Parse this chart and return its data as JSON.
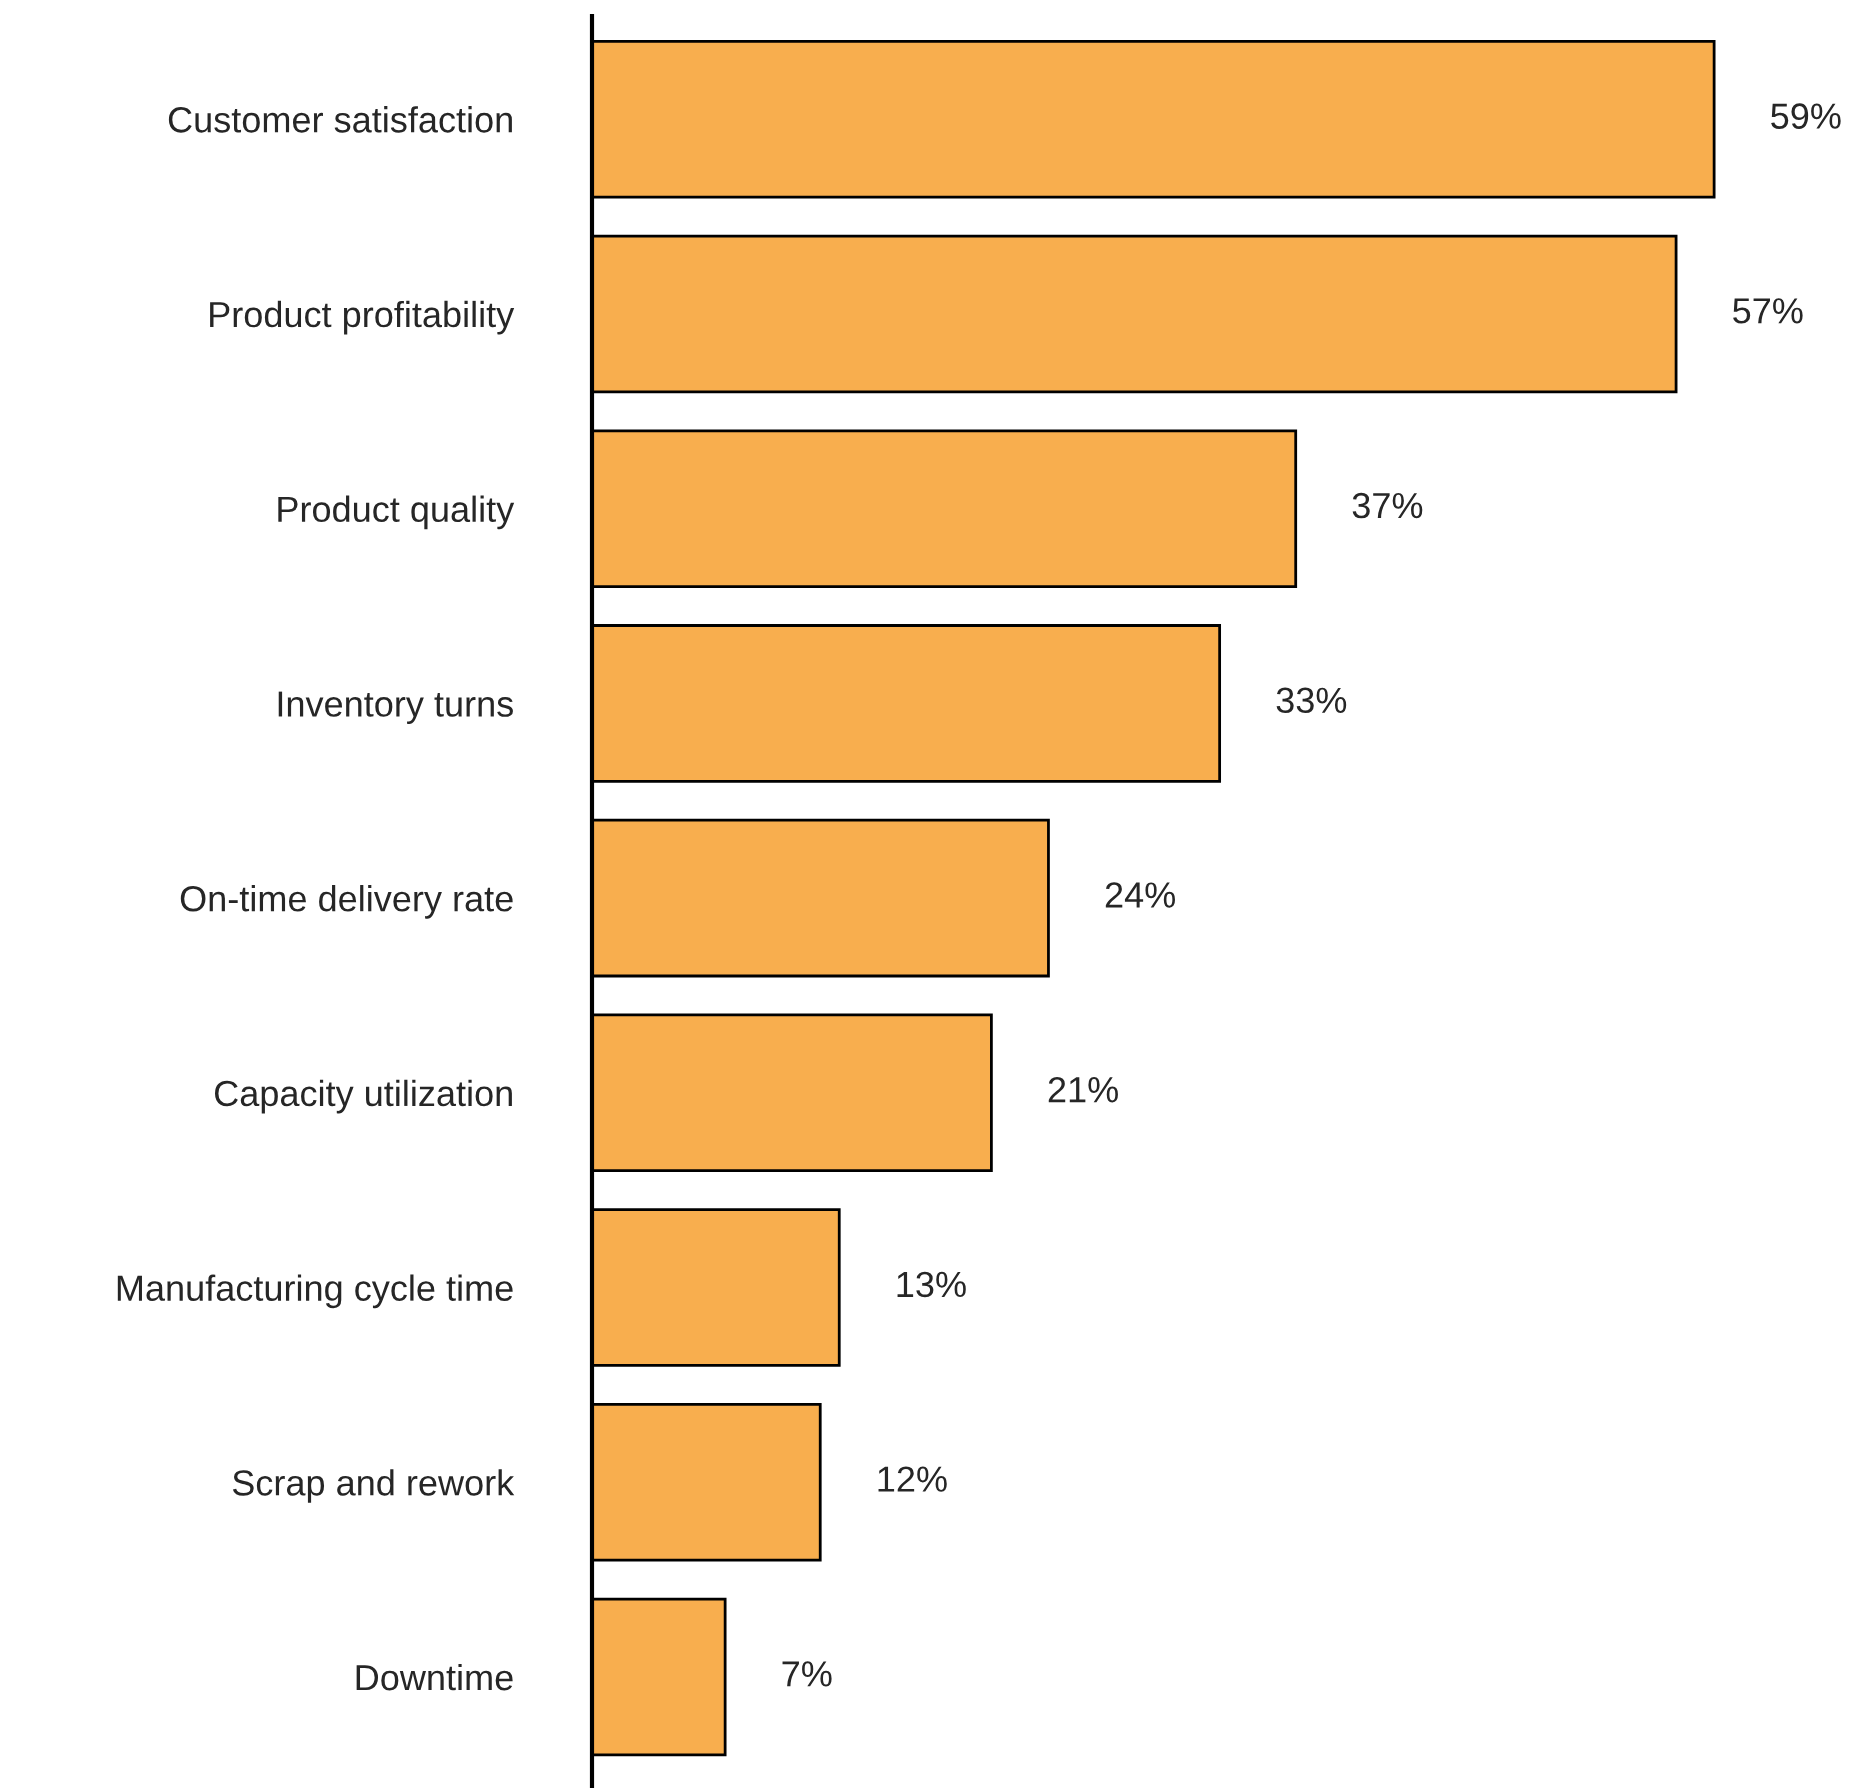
{
  "chart_data": {
    "type": "bar",
    "orientation": "horizontal",
    "categories": [
      "Customer satisfaction",
      "Product profitability",
      "Product quality",
      "Inventory turns",
      "On-time delivery rate",
      "Capacity utilization",
      "Manufacturing cycle time",
      "Scrap and rework",
      "Downtime"
    ],
    "values": [
      59,
      57,
      37,
      33,
      24,
      21,
      13,
      12,
      7
    ],
    "value_labels": [
      "59%",
      "57%",
      "37%",
      "33%",
      "24%",
      "21%",
      "13%",
      "12%",
      "7%"
    ],
    "color": "#f8ae4e",
    "tick_labels": "y",
    "grid": false,
    "legend": false
  }
}
